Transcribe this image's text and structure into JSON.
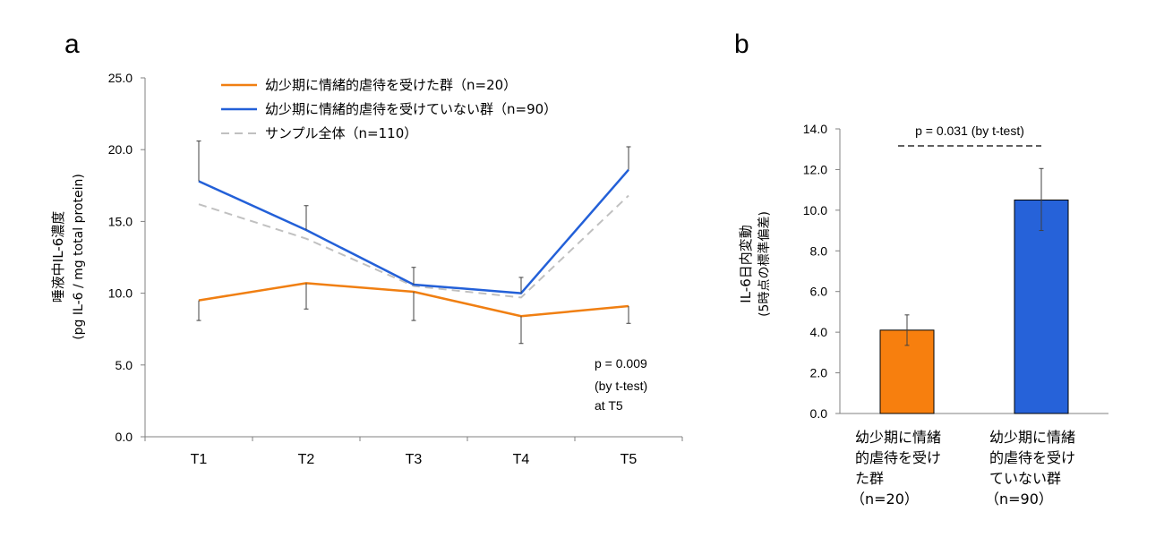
{
  "panels": {
    "a": {
      "letter": "a",
      "ylabel": "唾液中IL-6濃度",
      "ylabel_sub": "(pg IL-6 / mg total protein)",
      "annotation": [
        "p = 0.009",
        "(by t-test)",
        "at T5"
      ]
    },
    "b": {
      "letter": "b",
      "ylabel": "IL-6日内変動",
      "ylabel_sub": "(5時点の標準偏差)",
      "annotation": "p = 0.031 (by t-test)"
    }
  },
  "chart_data": [
    {
      "type": "line",
      "title": "",
      "x": [
        "T1",
        "T2",
        "T3",
        "T4",
        "T5"
      ],
      "ylim": [
        0,
        25
      ],
      "yticks": [
        "0.0",
        "5.0",
        "10.0",
        "15.0",
        "20.0",
        "25.0"
      ],
      "ylabel": "唾液中IL-6濃度 (pg IL-6 / mg total protein)",
      "legend_position": "top-center",
      "grid": false,
      "series": [
        {
          "name": "幼少期に情緒的虐待を受けた群（n=20）",
          "color": "#f07f12",
          "style": "solid",
          "values": [
            9.5,
            10.7,
            10.1,
            8.4,
            9.1
          ],
          "error_bars": {
            "lower": [
              8.1,
              8.9,
              8.1,
              6.5,
              7.9
            ]
          }
        },
        {
          "name": "幼少期に情緒的虐待を受けていない群（n=90）",
          "color": "#2360d8",
          "style": "solid",
          "values": [
            17.8,
            14.4,
            10.6,
            10.0,
            18.6
          ],
          "error_bars": {
            "upper": [
              20.6,
              16.1,
              11.8,
              11.1,
              20.2
            ]
          }
        },
        {
          "name": "サンプル全体（n=110）",
          "color": "#c0c0c0",
          "style": "dashed",
          "values": [
            16.2,
            13.8,
            10.5,
            9.7,
            16.8
          ]
        }
      ]
    },
    {
      "type": "bar",
      "title": "",
      "categories": [
        "幼少期に情緒的虐待を受けた群（n=20）",
        "幼少期に情緒的虐待を受けていない群（n=90）"
      ],
      "category_lines": [
        [
          "幼少期に情緒",
          "的虐待を受け",
          "た群",
          "（n=20）"
        ],
        [
          "幼少期に情緒",
          "的虐待を受け",
          "ていない群",
          "（n=90）"
        ]
      ],
      "values": [
        4.1,
        10.5
      ],
      "error_bars": {
        "lower": [
          3.35,
          9.0
        ],
        "upper": [
          4.85,
          12.05
        ]
      },
      "colors": [
        "#f77f0e",
        "#2662d9"
      ],
      "ylim": [
        0,
        14
      ],
      "yticks": [
        "0.0",
        "2.0",
        "4.0",
        "6.0",
        "8.0",
        "10.0",
        "12.0",
        "14.0"
      ],
      "ylabel": "IL-6日内変動 (5時点の標準偏差)",
      "grid": false
    }
  ]
}
